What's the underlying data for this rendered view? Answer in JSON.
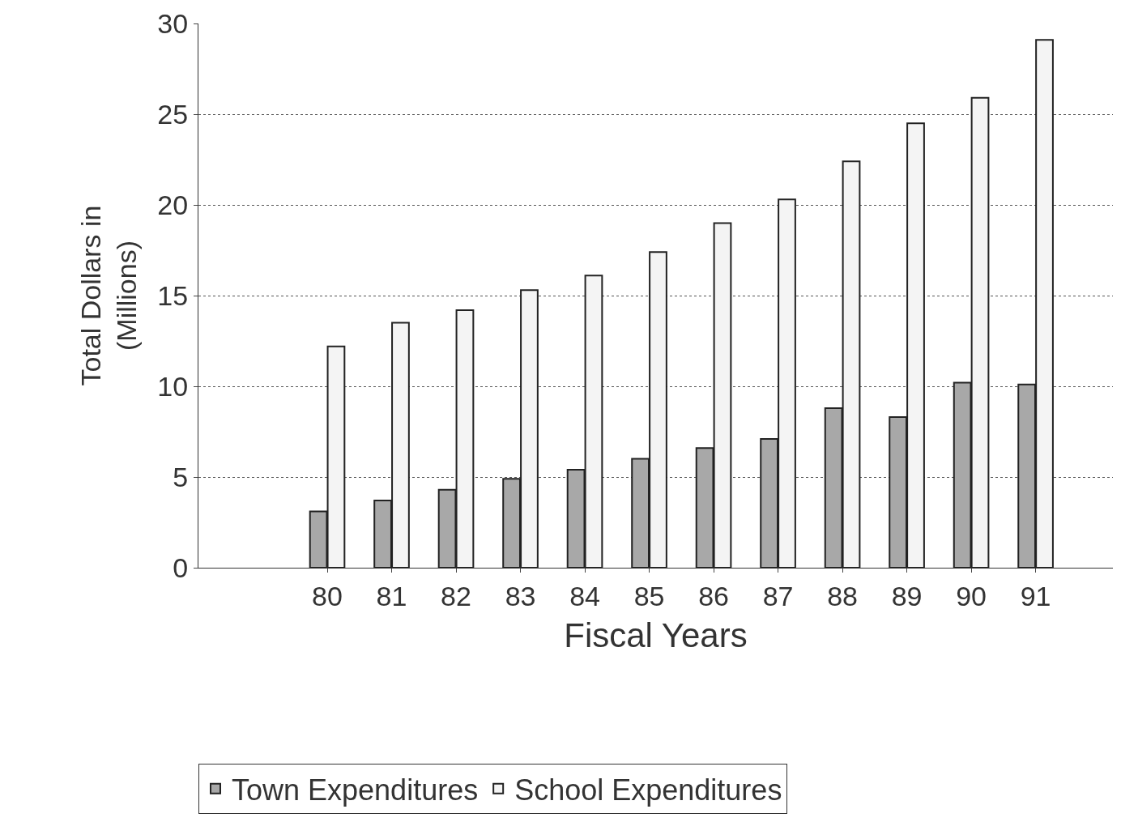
{
  "chart_data": {
    "type": "bar",
    "xlabel": "Fiscal Years",
    "ylabel": "Total Dollars in\n(Millions)",
    "categories": [
      "80",
      "81",
      "82",
      "83",
      "84",
      "85",
      "86",
      "87",
      "88",
      "89",
      "90",
      "91"
    ],
    "series": [
      {
        "name": "Town Expenditures",
        "color": "#a8a8a8",
        "values": [
          3.1,
          3.7,
          4.3,
          4.9,
          5.4,
          6.0,
          6.6,
          7.1,
          8.8,
          8.3,
          10.2,
          10.1
        ]
      },
      {
        "name": "School Expenditures",
        "color": "#f4f4f4",
        "values": [
          12.2,
          13.5,
          14.2,
          15.3,
          16.1,
          17.4,
          19.0,
          20.3,
          22.4,
          24.5,
          25.9,
          29.1
        ]
      }
    ],
    "ylim": [
      0,
      30
    ],
    "yticks": [
      0,
      5,
      10,
      15,
      20,
      25,
      30
    ],
    "grid": "y",
    "legend": "bottom"
  }
}
